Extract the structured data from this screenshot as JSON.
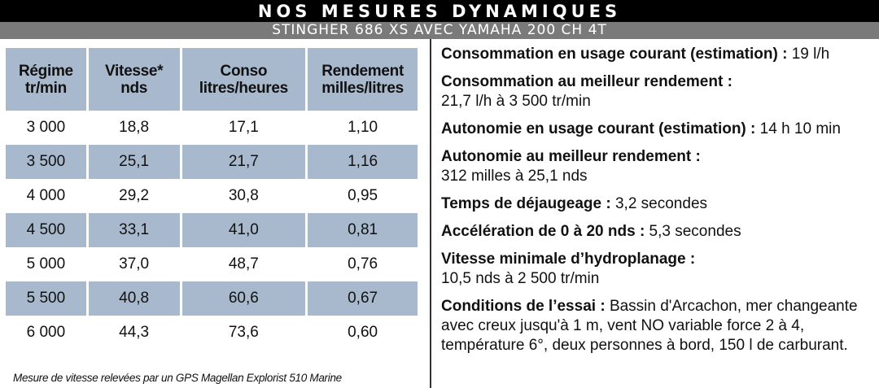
{
  "header": {
    "title": "NOS MESURES DYNAMIQUES",
    "subtitle": "STINGHER 686 XS AVEC YAMAHA 200 CH 4T"
  },
  "table": {
    "headers": [
      [
        "Régime",
        "tr/min"
      ],
      [
        "Vitesse*",
        "nds"
      ],
      [
        "Conso",
        "litres/heures"
      ],
      [
        "Rendement",
        "milles/litres"
      ]
    ],
    "rows": [
      [
        "3 000",
        "18,8",
        "17,1",
        "1,10"
      ],
      [
        "3 500",
        "25,1",
        "21,7",
        "1,16"
      ],
      [
        "4 000",
        "29,2",
        "30,8",
        "0,95"
      ],
      [
        "4 500",
        "33,1",
        "41,0",
        "0,81"
      ],
      [
        "5 000",
        "37,0",
        "48,7",
        "0,76"
      ],
      [
        "5 500",
        "40,8",
        "60,6",
        "0,67"
      ],
      [
        "6 000",
        "44,3",
        "73,6",
        "0,60"
      ]
    ],
    "footnote": "Mesure de vitesse relevées par un GPS Magellan Explorist 510 Marine"
  },
  "details": [
    {
      "label": "Consommation en usage courant (estimation) :",
      "value": "19 l/h",
      "inline": true
    },
    {
      "label": "Consommation au meilleur rendement :",
      "value": "21,7 l/h à 3 500 tr/min",
      "inline": false
    },
    {
      "label": "Autonomie en usage courant (estimation) :",
      "value": "14 h 10 min",
      "inline": true
    },
    {
      "label": "Autonomie au meilleur rendement :",
      "value": "312 milles à 25,1 nds",
      "inline": false
    },
    {
      "label": "Temps de déjaugeage :",
      "value": "3,2 secondes",
      "inline": true
    },
    {
      "label": "Accélération de 0 à 20 nds :",
      "value": "5,3 secondes",
      "inline": true
    },
    {
      "label": "Vitesse minimale d’hydroplanage :",
      "value": "10,5 nds à 2 500 tr/min",
      "inline": false
    },
    {
      "label": "Conditions de l’essai :",
      "value": "Bassin d'Arcachon, mer changeante avec creux jusqu'à 1 m, vent NO variable force 2 à 4, température 6°, deux personnes à bord, 150 l de carburant.",
      "inline": true
    }
  ],
  "colors": {
    "header_bg": "#000000",
    "subheader_bg": "#7a7a7a",
    "row_shade": "#a9b9cd"
  }
}
